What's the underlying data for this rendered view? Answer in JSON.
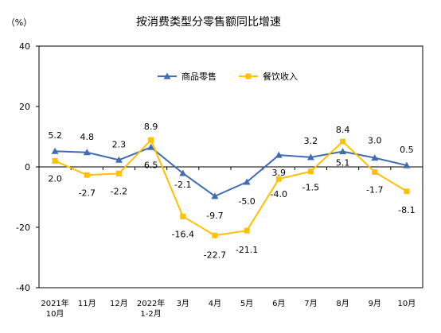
{
  "chart_data": {
    "type": "line",
    "title": "按消费类型分零售额同比增速",
    "unit_label": "（%）",
    "categories": [
      [
        "2021年",
        "10月"
      ],
      [
        "11月"
      ],
      [
        "12月"
      ],
      [
        "2022年",
        "1-2月"
      ],
      [
        "3月"
      ],
      [
        "4月"
      ],
      [
        "5月"
      ],
      [
        "6月"
      ],
      [
        "7月"
      ],
      [
        "8月"
      ],
      [
        "9月"
      ],
      [
        "10月"
      ]
    ],
    "ylim": [
      -40,
      40
    ],
    "yticks": [
      -40,
      -20,
      0,
      20,
      40
    ],
    "legend_position": "top",
    "series": [
      {
        "name": "商品零售",
        "color": "#3f6db3",
        "marker": "triangle",
        "values": [
          5.2,
          4.8,
          2.3,
          6.5,
          -2.1,
          -9.7,
          -5.0,
          3.9,
          3.2,
          5.1,
          3.0,
          0.5
        ],
        "labels": [
          "5.2",
          "4.8",
          "2.3",
          "6.5",
          "-2.1",
          "-9.7",
          "-5.0",
          "3.9",
          "3.2",
          "5.1",
          "3.0",
          "0.5"
        ]
      },
      {
        "name": "餐饮收入",
        "color": "#ffc000",
        "marker": "square",
        "values": [
          2.0,
          -2.7,
          -2.2,
          8.9,
          -16.4,
          -22.7,
          -21.1,
          -4.0,
          -1.5,
          8.4,
          -1.7,
          -8.1
        ],
        "labels": [
          "2.0",
          "-2.7",
          "-2.2",
          "8.9",
          "-16.4",
          "-22.7",
          "-21.1",
          "-4.0",
          "-1.5",
          "8.4",
          "-1.7",
          "-8.1"
        ]
      }
    ]
  }
}
